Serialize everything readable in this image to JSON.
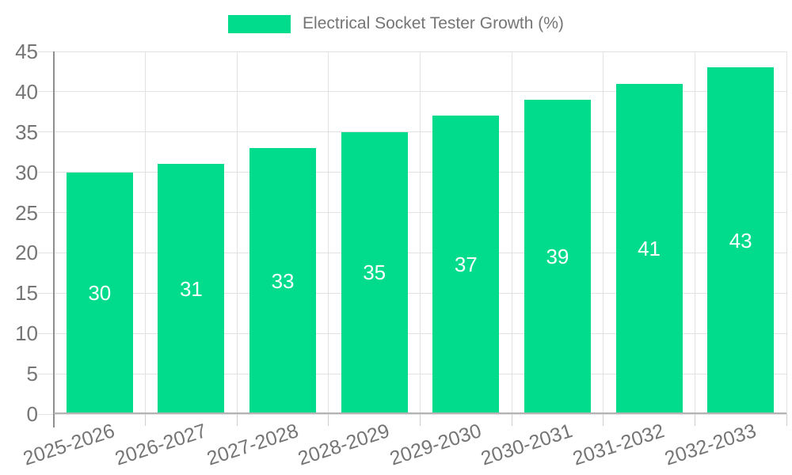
{
  "chart_data": {
    "type": "bar",
    "title": "Electrical Socket Tester Growth (%)",
    "legend": {
      "label": "Electrical Socket Tester Growth (%)",
      "position": "top"
    },
    "categories": [
      "2025-2026",
      "2026-2027",
      "2027-2028",
      "2028-2029",
      "2029-2030",
      "2030-2031",
      "2031-2032",
      "2032-2033"
    ],
    "values": [
      30,
      31,
      33,
      35,
      37,
      39,
      41,
      43
    ],
    "value_labels": [
      "30",
      "31",
      "33",
      "35",
      "37",
      "39",
      "41",
      "43"
    ],
    "xlabel": "",
    "ylabel": "",
    "ylim": [
      0,
      45
    ],
    "yticks": [
      0,
      5,
      10,
      15,
      20,
      25,
      30,
      35,
      40,
      45
    ],
    "grid": true,
    "colors": {
      "bar": "#00DB8C",
      "value_label": "#ffffff",
      "axis_text": "#757575",
      "gridline": "#e2e2e2",
      "y_axis_line": "#8f8f8f",
      "x_axis_line": "#b3b3b3",
      "background": "#ffffff"
    }
  }
}
